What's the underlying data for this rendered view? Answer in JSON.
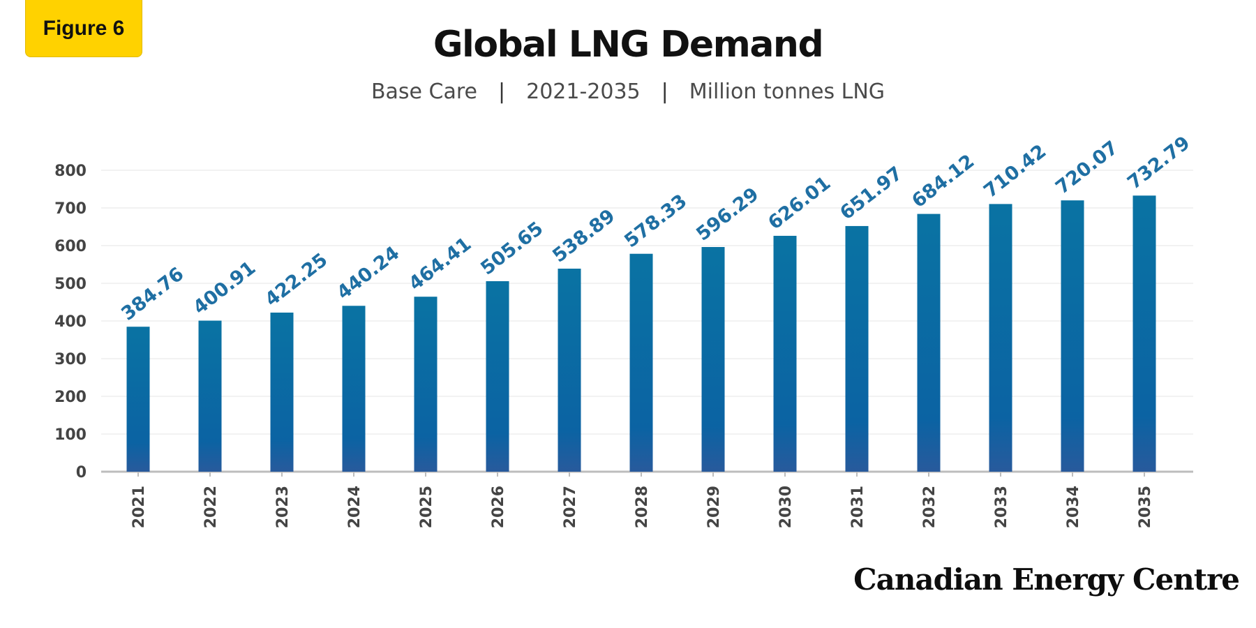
{
  "badge": {
    "label": "Figure 6"
  },
  "header": {
    "title": "Global LNG Demand",
    "subtitle_scenario": "Base Care",
    "subtitle_range": "2021-2035",
    "subtitle_unit": "Million tonnes LNG",
    "separator": "|"
  },
  "brand": {
    "name": "Canadian Energy Centre"
  },
  "colors": {
    "bar_top": "#0a73a3",
    "bar_bottom": "#285a9c",
    "label": "#1f6fa3",
    "grid": "#e4e4e4",
    "axis": "#bdbdbd",
    "badge": "#ffd200"
  },
  "chart_data": {
    "type": "bar",
    "categories": [
      "2021",
      "2022",
      "2023",
      "2024",
      "2025",
      "2026",
      "2027",
      "2028",
      "2029",
      "2030",
      "2031",
      "2032",
      "2033",
      "2034",
      "2035"
    ],
    "values": [
      384.76,
      400.91,
      422.25,
      440.24,
      464.41,
      505.65,
      538.89,
      578.33,
      596.29,
      626.01,
      651.97,
      684.12,
      710.42,
      720.07,
      732.79
    ],
    "data_labels": [
      "384.76",
      "400.91",
      "422.25",
      "440.24",
      "464.41",
      "505.65",
      "538.89",
      "578.33",
      "596.29",
      "626.01",
      "651.97",
      "684.12",
      "710.42",
      "720.07",
      "732.79"
    ],
    "yticks": [
      0,
      100,
      200,
      300,
      400,
      500,
      600,
      700,
      800
    ],
    "ylim": [
      0,
      800
    ],
    "grid": true,
    "legend": "none"
  }
}
